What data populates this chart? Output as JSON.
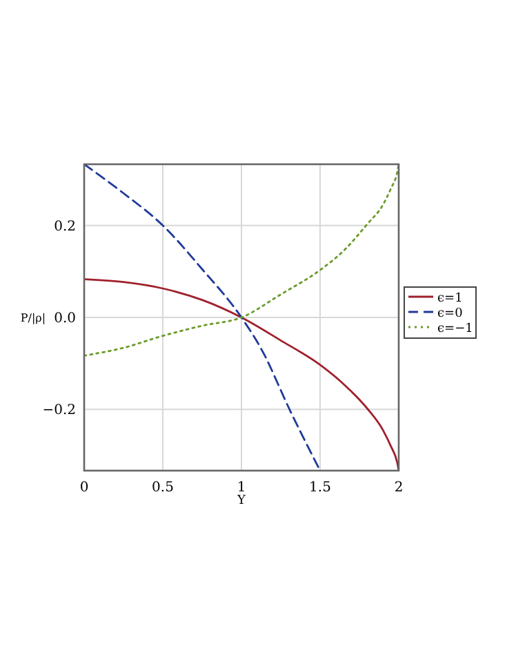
{
  "chart_data": {
    "type": "line",
    "xlabel": "Y",
    "ylabel": "P/|ρ|",
    "xlim": [
      0,
      2
    ],
    "ylim": [
      -0.333,
      0.333
    ],
    "xticks": [
      0,
      0.5,
      1,
      1.5,
      2
    ],
    "yticks": [
      {
        "value": -0.2,
        "label": "−0.2"
      },
      {
        "value": 0,
        "label": "0.0"
      },
      {
        "value": 0.2,
        "label": "0.2"
      }
    ],
    "grid": true,
    "legend": "right",
    "series": [
      {
        "name": "ϵ=1",
        "color": "#a0202c",
        "line_style": "solid",
        "x": [
          0,
          0.25,
          0.5,
          0.75,
          1,
          1.25,
          1.5,
          1.65,
          1.8,
          1.9,
          1.95,
          1.99,
          2
        ],
        "values": [
          0.083,
          0.077,
          0.063,
          0.038,
          0,
          -0.05,
          -0.103,
          -0.145,
          -0.198,
          -0.245,
          -0.28,
          -0.315,
          -0.333
        ]
      },
      {
        "name": "ϵ=0",
        "color": "#1f3b9a",
        "line_style": "dashed",
        "x": [
          0,
          0.25,
          0.5,
          0.75,
          1,
          1.13,
          1.31,
          1.5
        ],
        "values": [
          0.333,
          0.27,
          0.2,
          0.105,
          0,
          -0.071,
          -0.203,
          -0.333
        ]
      },
      {
        "name": "ϵ=−1",
        "color": "#6b9a2a",
        "line_style": "dotted",
        "x": [
          0,
          0.25,
          0.5,
          0.75,
          1,
          1.25,
          1.5,
          1.65,
          1.8,
          1.9,
          1.95,
          1.99,
          2
        ],
        "values": [
          -0.083,
          -0.066,
          -0.04,
          -0.018,
          0,
          0.05,
          0.103,
          0.145,
          0.203,
          0.245,
          0.28,
          0.315,
          0.333
        ]
      }
    ]
  }
}
